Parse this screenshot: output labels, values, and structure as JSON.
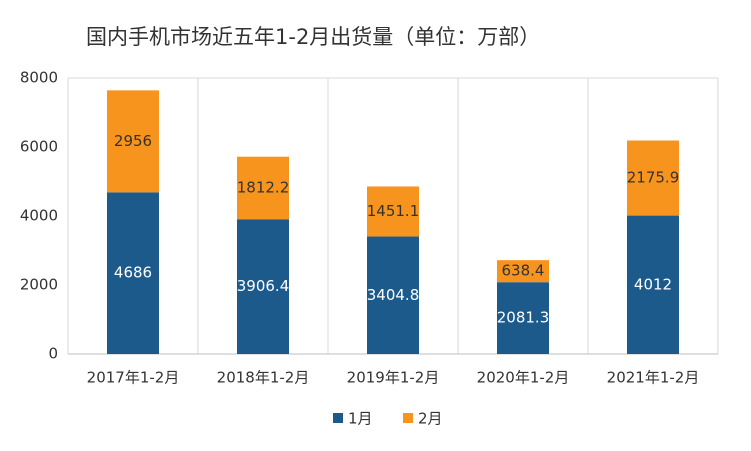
{
  "chart_data": {
    "type": "stacked_bar",
    "title": "国内手机市场近五年1-2月出货量（单位：万部）",
    "categories": [
      "2017年1-2月",
      "2018年1-2月",
      "2019年1-2月",
      "2020年1-2月",
      "2021年1-2月"
    ],
    "series": [
      {
        "name": "1月",
        "color": "#1c5a8c",
        "values": [
          4686,
          3906.4,
          3404.8,
          2081.3,
          4012
        ]
      },
      {
        "name": "2月",
        "color": "#f7941d",
        "values": [
          2956,
          1812.2,
          1451.1,
          638.4,
          2175.9
        ]
      }
    ],
    "ylim": [
      0,
      8000
    ],
    "yticks": [
      0,
      2000,
      4000,
      6000,
      8000
    ],
    "grid": false,
    "legend": "bottom"
  }
}
